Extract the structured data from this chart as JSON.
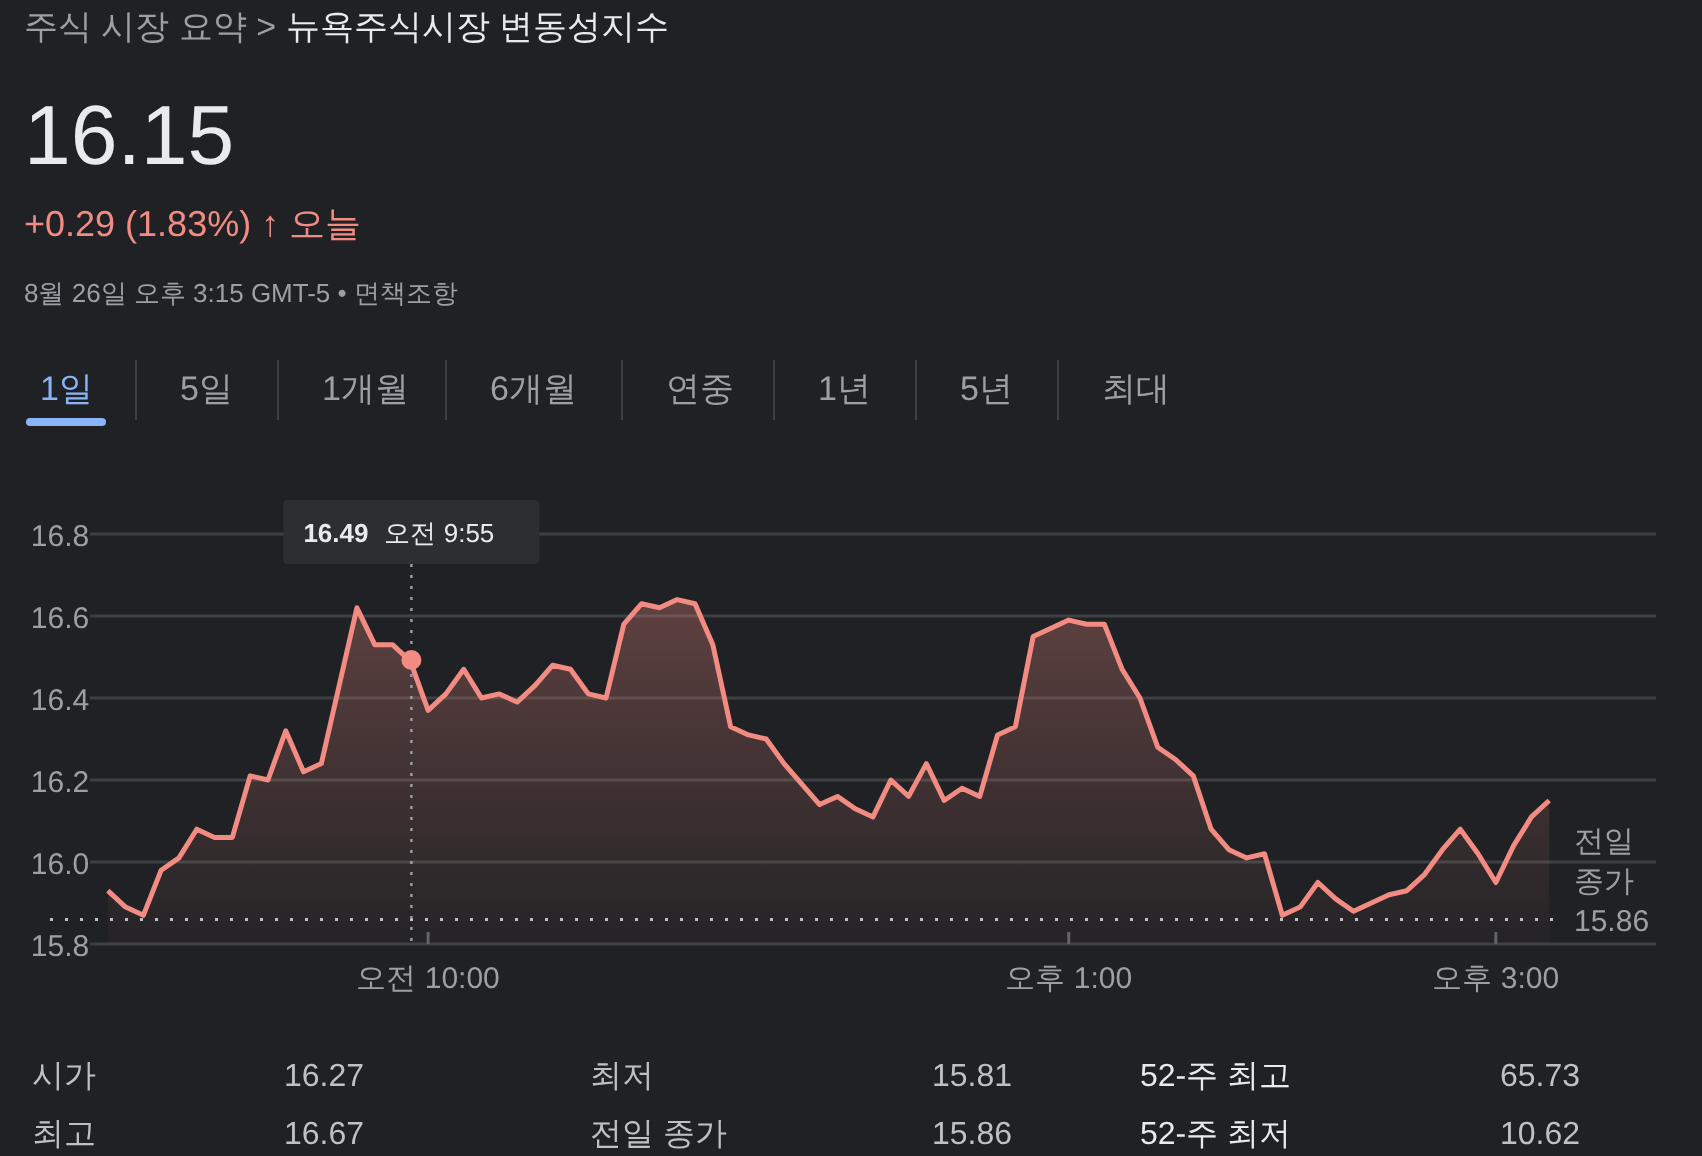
{
  "chart_data": {
    "type": "area",
    "subtitle": "주식 시장 요약 >",
    "title": "뉴욕주식시장 변동성지수",
    "categories": [
      null,
      null,
      null,
      null,
      null,
      null,
      null,
      null,
      null,
      null,
      null,
      null,
      null,
      null,
      null,
      null,
      null,
      null,
      "오전 10:00",
      null,
      null,
      null,
      null,
      null,
      null,
      null,
      null,
      null,
      null,
      null,
      null,
      null,
      null,
      null,
      null,
      null,
      null,
      null,
      null,
      null,
      null,
      null,
      null,
      null,
      null,
      null,
      null,
      null,
      null,
      null,
      null,
      null,
      null,
      null,
      "오후 1:00",
      null,
      null,
      null,
      null,
      null,
      null,
      null,
      null,
      null,
      null,
      null,
      null,
      null,
      null,
      null,
      null,
      null,
      null,
      null,
      null,
      null,
      null,
      null,
      "오후 3:00",
      null,
      null,
      null
    ],
    "series": [
      {
        "color": "#f28b82",
        "values": [
          15.93,
          15.89,
          15.87,
          15.98,
          16.01,
          16.08,
          16.06,
          16.06,
          16.21,
          16.2,
          16.32,
          16.22,
          16.24,
          16.43,
          16.62,
          16.53,
          16.53,
          16.49,
          16.37,
          16.41,
          16.47,
          16.4,
          16.41,
          16.39,
          16.43,
          16.48,
          16.47,
          16.41,
          16.4,
          16.58,
          16.63,
          16.62,
          16.64,
          16.63,
          16.53,
          16.33,
          16.31,
          16.3,
          16.24,
          16.19,
          16.14,
          16.16,
          16.13,
          16.11,
          16.2,
          16.16,
          16.24,
          16.15,
          16.18,
          16.16,
          16.31,
          16.33,
          16.55,
          16.57,
          16.59,
          16.58,
          16.58,
          16.47,
          16.4,
          16.28,
          16.25,
          16.21,
          16.08,
          16.03,
          16.01,
          16.02,
          15.87,
          15.89,
          15.95,
          15.91,
          15.88,
          15.9,
          15.92,
          15.93,
          15.97,
          16.03,
          16.08,
          16.02,
          15.95,
          16.04,
          16.11,
          16.15
        ]
      }
    ],
    "ylim": [
      15.8,
      16.8
    ],
    "yticks": [
      15.8,
      {
        "value": 16,
        "label": "16.0"
      },
      16.2,
      16.4,
      16.6,
      16.8
    ],
    "grid": "y",
    "line_style": "solid",
    "marker": "none",
    "ref_lines": [
      {
        "axis": "y",
        "value": 15.86,
        "label": "전일 종가 15.86",
        "line_style": "dotted",
        "color": "#bdc1c6"
      }
    ],
    "annotations": [
      "16.15",
      "+0.29 (1.83%) ↑ 오늘",
      "8월 26일 오후 3:15 GMT-5 • 면책조항",
      "1일",
      "5일",
      "1개월",
      "6개월",
      "연중",
      "1년",
      "5년",
      "최대",
      "시가",
      "16.27",
      "최저",
      "15.81",
      "52-주 최고",
      "65.73",
      "최고",
      "16.67",
      "전일 종가",
      "15.86",
      "52-주 최저",
      "10.62",
      "16.49  오전 9:55"
    ]
  }
}
